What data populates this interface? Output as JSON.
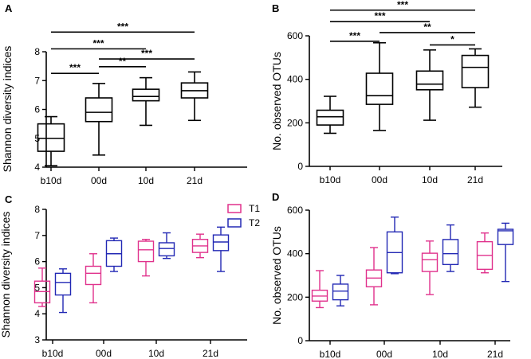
{
  "colors": {
    "T1": "#e0318c",
    "T2": "#2228b4",
    "pooled": "#000000"
  },
  "chart_data": [
    {
      "panel": "A",
      "type": "boxplot",
      "ylabel": "Shannon diversity indices",
      "xlabel": "",
      "ylim": [
        4,
        8
      ],
      "yticks": [
        4,
        5,
        6,
        7,
        8
      ],
      "categories": [
        "b10d",
        "00d",
        "10d",
        "21d"
      ],
      "series": [
        {
          "name": "pooled",
          "boxes": [
            {
              "min": 4.05,
              "q1": 4.55,
              "median": 5.0,
              "q3": 5.5,
              "max": 5.75
            },
            {
              "min": 4.42,
              "q1": 5.58,
              "median": 5.9,
              "q3": 6.4,
              "max": 6.9
            },
            {
              "min": 5.45,
              "q1": 6.3,
              "median": 6.45,
              "q3": 6.7,
              "max": 7.1
            },
            {
              "min": 5.62,
              "q1": 6.4,
              "median": 6.65,
              "q3": 6.92,
              "max": 7.3
            }
          ]
        }
      ],
      "significance": [
        {
          "from": 0,
          "to": 3,
          "label": "***",
          "y": 8.68
        },
        {
          "from": 0,
          "to": 2,
          "label": "***",
          "y": 8.1
        },
        {
          "from": 1,
          "to": 3,
          "label": "***",
          "y": 7.75
        },
        {
          "from": 0,
          "to": 1,
          "label": "***",
          "y": 7.25
        },
        {
          "from": 1,
          "to": 2,
          "label": "**",
          "y": 7.48
        }
      ]
    },
    {
      "panel": "B",
      "type": "boxplot",
      "ylabel": "No. observed OTUs",
      "xlabel": "",
      "ylim": [
        0,
        600
      ],
      "yticks": [
        0,
        200,
        400,
        600
      ],
      "categories": [
        "b10d",
        "00d",
        "10d",
        "21d"
      ],
      "series": [
        {
          "name": "pooled",
          "boxes": [
            {
              "min": 152,
              "q1": 190,
              "median": 228,
              "q3": 258,
              "max": 322
            },
            {
              "min": 165,
              "q1": 285,
              "median": 325,
              "q3": 428,
              "max": 568
            },
            {
              "min": 212,
              "q1": 352,
              "median": 378,
              "q3": 438,
              "max": 535
            },
            {
              "min": 272,
              "q1": 362,
              "median": 455,
              "q3": 510,
              "max": 540
            }
          ]
        }
      ],
      "significance": [
        {
          "from": 0,
          "to": 3,
          "label": "***",
          "y": 718
        },
        {
          "from": 0,
          "to": 2,
          "label": "***",
          "y": 665
        },
        {
          "from": 1,
          "to": 3,
          "label": "**",
          "y": 615
        },
        {
          "from": 0,
          "to": 1,
          "label": "***",
          "y": 575
        },
        {
          "from": 2,
          "to": 3,
          "label": "*",
          "y": 558
        }
      ]
    },
    {
      "panel": "C",
      "type": "boxplot",
      "ylabel": "Shannon diversity indices",
      "xlabel": "",
      "ylim": [
        3,
        8
      ],
      "yticks": [
        3,
        4,
        5,
        6,
        7,
        8
      ],
      "categories": [
        "b10d",
        "00d",
        "10d",
        "21d"
      ],
      "legend": [
        "T1",
        "T2"
      ],
      "legend_position": "top-right",
      "series": [
        {
          "name": "T1",
          "boxes": [
            {
              "min": 4.28,
              "q1": 4.42,
              "median": 4.85,
              "q3": 5.25,
              "max": 5.75
            },
            {
              "min": 4.42,
              "q1": 5.12,
              "median": 5.55,
              "q3": 5.82,
              "max": 6.3
            },
            {
              "min": 5.45,
              "q1": 6.0,
              "median": 6.45,
              "q3": 6.78,
              "max": 6.85
            },
            {
              "min": 6.15,
              "q1": 6.35,
              "median": 6.6,
              "q3": 6.85,
              "max": 7.05
            }
          ]
        },
        {
          "name": "T2",
          "boxes": [
            {
              "min": 4.05,
              "q1": 4.72,
              "median": 5.2,
              "q3": 5.55,
              "max": 5.72
            },
            {
              "min": 5.62,
              "q1": 5.82,
              "median": 6.3,
              "q3": 6.8,
              "max": 6.9
            },
            {
              "min": 6.12,
              "q1": 6.22,
              "median": 6.5,
              "q3": 6.72,
              "max": 7.1
            },
            {
              "min": 5.62,
              "q1": 6.42,
              "median": 6.75,
              "q3": 7.02,
              "max": 7.32
            }
          ]
        }
      ]
    },
    {
      "panel": "D",
      "type": "boxplot",
      "ylabel": "No. observed OTUs",
      "xlabel": "",
      "ylim": [
        0,
        600
      ],
      "yticks": [
        0,
        200,
        400,
        600
      ],
      "categories": [
        "b10d",
        "00d",
        "10d",
        "21d"
      ],
      "series": [
        {
          "name": "T1",
          "boxes": [
            {
              "min": 152,
              "q1": 182,
              "median": 205,
              "q3": 232,
              "max": 322
            },
            {
              "min": 165,
              "q1": 248,
              "median": 288,
              "q3": 325,
              "max": 428
            },
            {
              "min": 212,
              "q1": 318,
              "median": 372,
              "q3": 402,
              "max": 458
            },
            {
              "min": 312,
              "q1": 328,
              "median": 392,
              "q3": 455,
              "max": 495
            }
          ]
        },
        {
          "name": "T2",
          "boxes": [
            {
              "min": 160,
              "q1": 188,
              "median": 228,
              "q3": 260,
              "max": 300
            },
            {
              "min": 308,
              "q1": 312,
              "median": 405,
              "q3": 500,
              "max": 568
            },
            {
              "min": 318,
              "q1": 350,
              "median": 400,
              "q3": 465,
              "max": 532
            },
            {
              "min": 272,
              "q1": 442,
              "median": 505,
              "q3": 512,
              "max": 540
            }
          ]
        }
      ]
    }
  ]
}
